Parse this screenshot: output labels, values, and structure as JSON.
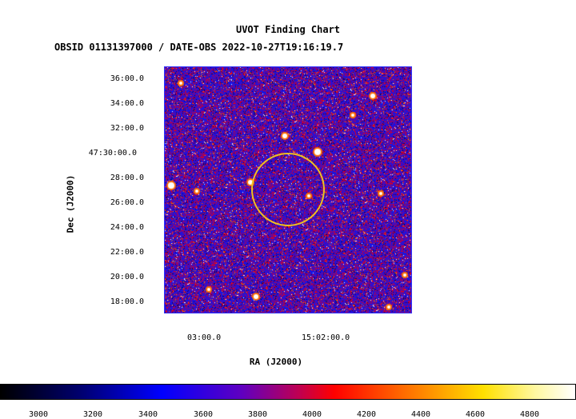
{
  "title": "UVOT Finding Chart",
  "subtitle": "OBSID 01131397000 / DATE-OBS 2022-10-27T19:16:19.7",
  "axes": {
    "ylabel": "Dec (J2000)",
    "xlabel": "RA (J2000)",
    "yticks": [
      "36:00.0",
      "34:00.0",
      "32:00.0",
      "47:30:00.0",
      "28:00.0",
      "26:00.0",
      "24:00.0",
      "22:00.0",
      "20:00.0",
      "18:00.0"
    ],
    "xticks": [
      "03:00.0",
      "15:02:00.0"
    ]
  },
  "colorbar": {
    "ticks": [
      "3000",
      "3200",
      "3400",
      "3600",
      "3800",
      "4000",
      "4200",
      "4400",
      "4600",
      "4800"
    ]
  },
  "colors": {
    "circle": "#f0c020",
    "panel_border": "#3030ff"
  }
}
